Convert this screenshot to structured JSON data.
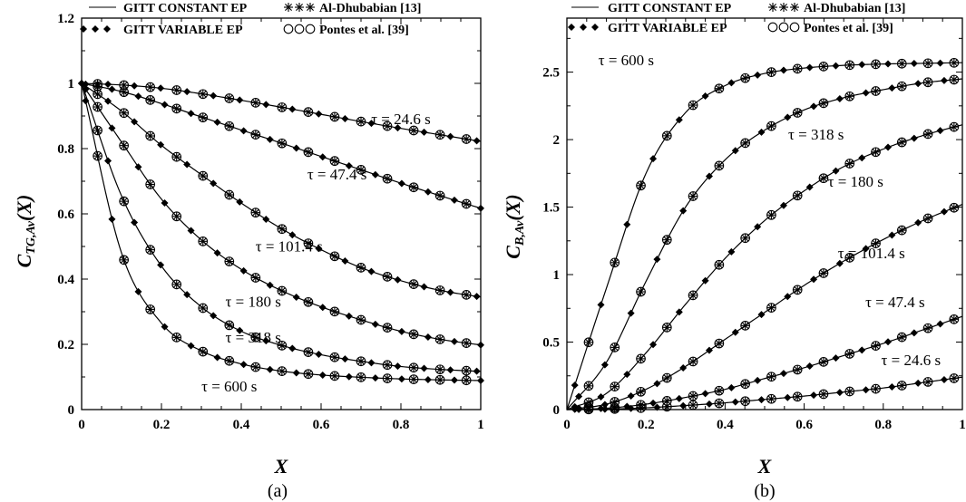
{
  "chart_data": [
    {
      "type": "line",
      "panel": "(a)",
      "caption": "(a)",
      "xlabel": "X",
      "ylabel_main": "C",
      "ylabel_sub": "TG,Av",
      "ylabel_arg": "(X)",
      "xlim": [
        0,
        1
      ],
      "ylim": [
        0,
        1.2
      ],
      "xticks": [
        "0",
        "0.2",
        "0.4",
        "0.6",
        "0.8",
        "1"
      ],
      "yticks": [
        "0",
        "0.2",
        "0.4",
        "0.6",
        "0.8",
        "1",
        "1.2"
      ],
      "legend": [
        "GITT CONSTANT EP",
        "GITT VARIABLE EP",
        "Al-Dhubabian [13]",
        "Pontes et al. [39]"
      ],
      "series": [
        {
          "label": "τ = 24.6 s",
          "x": [
            0,
            0.1,
            0.2,
            0.3,
            0.4,
            0.5,
            0.6,
            0.7,
            0.8,
            0.9,
            1.0
          ],
          "y": [
            1,
            0.995,
            0.985,
            0.968,
            0.948,
            0.927,
            0.905,
            0.883,
            0.862,
            0.842,
            0.822
          ]
        },
        {
          "label": "τ = 47.4 s",
          "x": [
            0,
            0.1,
            0.2,
            0.3,
            0.4,
            0.5,
            0.6,
            0.7,
            0.8,
            0.9,
            1.0
          ],
          "y": [
            1,
            0.975,
            0.938,
            0.897,
            0.857,
            0.817,
            0.776,
            0.735,
            0.694,
            0.655,
            0.617
          ]
        },
        {
          "label": "τ = 101.4 s",
          "x": [
            0,
            0.1,
            0.2,
            0.3,
            0.4,
            0.5,
            0.6,
            0.7,
            0.8,
            0.9,
            1.0
          ],
          "y": [
            1,
            0.915,
            0.81,
            0.72,
            0.633,
            0.555,
            0.49,
            0.435,
            0.395,
            0.365,
            0.345
          ]
        },
        {
          "label": "τ = 180 s",
          "x": [
            0,
            0.1,
            0.2,
            0.3,
            0.4,
            0.5,
            0.6,
            0.7,
            0.8,
            0.9,
            1.0
          ],
          "y": [
            1,
            0.82,
            0.645,
            0.52,
            0.43,
            0.365,
            0.315,
            0.275,
            0.24,
            0.215,
            0.198
          ]
        },
        {
          "label": "τ = 318 s",
          "x": [
            0,
            0.1,
            0.2,
            0.3,
            0.4,
            0.5,
            0.6,
            0.7,
            0.8,
            0.9,
            1.0
          ],
          "y": [
            1,
            0.655,
            0.44,
            0.315,
            0.24,
            0.197,
            0.168,
            0.148,
            0.132,
            0.123,
            0.117
          ]
        },
        {
          "label": "τ = 600 s",
          "x": [
            0,
            0.1,
            0.2,
            0.3,
            0.4,
            0.5,
            0.6,
            0.7,
            0.8,
            0.9,
            1.0
          ],
          "y": [
            1,
            0.48,
            0.265,
            0.18,
            0.14,
            0.118,
            0.106,
            0.099,
            0.094,
            0.091,
            0.089
          ]
        }
      ],
      "annotations": [
        {
          "text": "τ = 24.6 s",
          "x": 0.8,
          "y": 0.875
        },
        {
          "text": "τ = 47.4 s",
          "x": 0.64,
          "y": 0.705
        },
        {
          "text": "τ = 101.4 s",
          "x": 0.52,
          "y": 0.485
        },
        {
          "text": "τ = 180 s",
          "x": 0.43,
          "y": 0.315
        },
        {
          "text": "τ = 318 s",
          "x": 0.43,
          "y": 0.205
        },
        {
          "text": "τ = 600 s",
          "x": 0.37,
          "y": 0.055
        }
      ]
    },
    {
      "type": "line",
      "panel": "(b)",
      "caption": "(b)",
      "xlabel": "X",
      "ylabel_main": "C",
      "ylabel_sub": "B,Av",
      "ylabel_arg": "(X)",
      "xlim": [
        0,
        1
      ],
      "ylim": [
        0,
        2.9
      ],
      "xticks": [
        "0",
        "0.2",
        "0.4",
        "0.6",
        "0.8",
        "1"
      ],
      "yticks": [
        "0",
        "0.5",
        "1",
        "1.5",
        "2",
        "2.5"
      ],
      "ytick_values": [
        0,
        0.5,
        1,
        1.5,
        2,
        2.5
      ],
      "legend": [
        "GITT CONSTANT EP",
        "GITT VARIABLE EP",
        "Al-Dhubabian [13]",
        "Pontes et al. [39]"
      ],
      "series": [
        {
          "label": "τ = 600 s",
          "x": [
            0,
            0.1,
            0.2,
            0.3,
            0.4,
            0.5,
            0.6,
            0.7,
            0.8,
            0.9,
            1.0
          ],
          "y": [
            0,
            0.9,
            1.75,
            2.2,
            2.4,
            2.49,
            2.53,
            2.55,
            2.56,
            2.565,
            2.57
          ]
        },
        {
          "label": "τ = 318 s",
          "x": [
            0,
            0.1,
            0.2,
            0.3,
            0.4,
            0.5,
            0.6,
            0.7,
            0.8,
            0.9,
            1.0
          ],
          "y": [
            0,
            0.35,
            0.95,
            1.5,
            1.85,
            2.07,
            2.22,
            2.31,
            2.37,
            2.42,
            2.45
          ]
        },
        {
          "label": "τ = 180 s",
          "x": [
            0,
            0.1,
            0.2,
            0.3,
            0.4,
            0.5,
            0.6,
            0.7,
            0.8,
            0.9,
            1.0
          ],
          "y": [
            0,
            0.12,
            0.42,
            0.78,
            1.12,
            1.4,
            1.62,
            1.8,
            1.93,
            2.03,
            2.11
          ]
        },
        {
          "label": "τ = 101.4 s",
          "x": [
            0,
            0.1,
            0.2,
            0.3,
            0.4,
            0.5,
            0.6,
            0.7,
            0.8,
            0.9,
            1.0
          ],
          "y": [
            0,
            0.04,
            0.15,
            0.32,
            0.52,
            0.72,
            0.92,
            1.1,
            1.26,
            1.4,
            1.52
          ]
        },
        {
          "label": "τ = 47.4 s",
          "x": [
            0,
            0.1,
            0.2,
            0.3,
            0.4,
            0.5,
            0.6,
            0.7,
            0.8,
            0.9,
            1.0
          ],
          "y": [
            0,
            0.01,
            0.04,
            0.09,
            0.15,
            0.23,
            0.31,
            0.4,
            0.49,
            0.59,
            0.69
          ]
        },
        {
          "label": "τ = 24.6 s",
          "x": [
            0,
            0.1,
            0.2,
            0.3,
            0.4,
            0.5,
            0.6,
            0.7,
            0.8,
            0.9,
            1.0
          ],
          "y": [
            0,
            0.003,
            0.013,
            0.03,
            0.05,
            0.075,
            0.1,
            0.13,
            0.16,
            0.2,
            0.24
          ]
        }
      ],
      "annotations": [
        {
          "text": "τ = 600 s",
          "x": 0.15,
          "y": 2.55
        },
        {
          "text": "τ = 318 s",
          "x": 0.63,
          "y": 2.0
        },
        {
          "text": "τ = 180 s",
          "x": 0.73,
          "y": 1.65
        },
        {
          "text": "τ = 101.4 s",
          "x": 0.77,
          "y": 1.12
        },
        {
          "text": "τ = 47.4 s",
          "x": 0.83,
          "y": 0.76
        },
        {
          "text": "τ = 24.6 s",
          "x": 0.87,
          "y": 0.33
        }
      ]
    }
  ]
}
